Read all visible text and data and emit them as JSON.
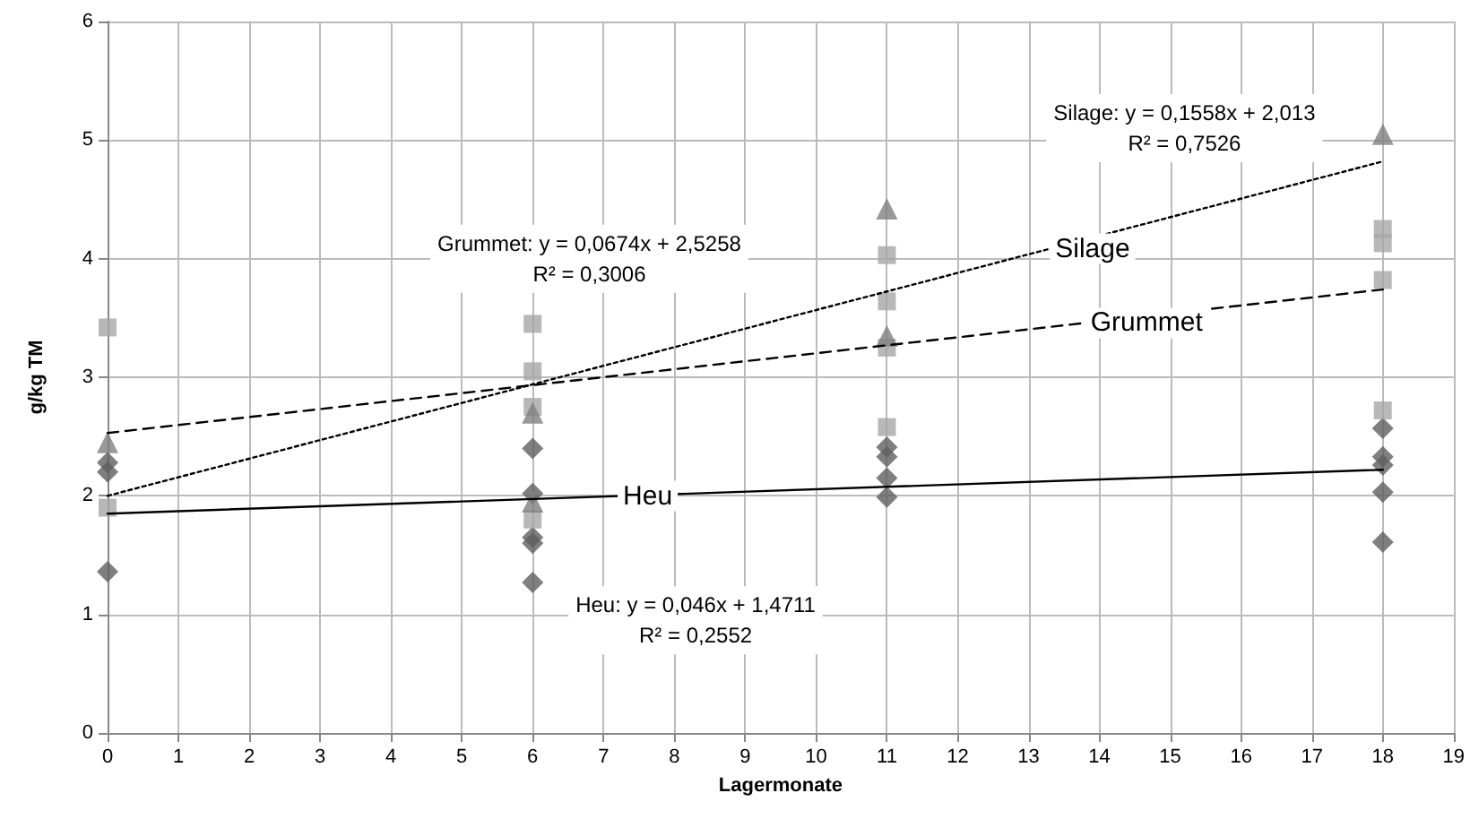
{
  "chart_data": {
    "type": "scatter",
    "xlabel": "Lagermonate",
    "ylabel": "g/kg TM",
    "xlim": [
      0,
      19
    ],
    "xticks": [
      0,
      1,
      2,
      3,
      4,
      5,
      6,
      7,
      8,
      9,
      10,
      11,
      12,
      13,
      14,
      15,
      16,
      17,
      18,
      19
    ],
    "ylim": [
      0,
      6
    ],
    "yticks": [
      0,
      1,
      2,
      3,
      4,
      5,
      6
    ],
    "grid": true,
    "legend": false,
    "series": [
      {
        "marker": "diamond",
        "color": "#5f5f5f",
        "x": [
          0,
          0,
          0,
          6,
          6,
          6,
          6,
          6,
          11,
          11,
          11,
          11,
          18,
          18,
          18,
          18,
          18
        ],
        "values": [
          2.28,
          2.2,
          1.36,
          2.4,
          2.02,
          1.65,
          1.6,
          1.27,
          2.41,
          2.33,
          2.15,
          1.99,
          2.57,
          2.33,
          2.26,
          2.03,
          1.61
        ]
      },
      {
        "marker": "square",
        "color": "#a6a6a6",
        "x": [
          0,
          0,
          6,
          6,
          6,
          6,
          11,
          11,
          11,
          11,
          18,
          18,
          18,
          18
        ],
        "values": [
          3.42,
          1.9,
          3.45,
          3.05,
          2.75,
          1.8,
          4.03,
          3.64,
          3.25,
          2.58,
          4.25,
          4.13,
          3.82,
          2.72
        ]
      },
      {
        "marker": "triangle",
        "color": "#808080",
        "x": [
          0,
          6,
          6,
          11,
          11,
          18
        ],
        "values": [
          2.45,
          2.7,
          1.95,
          4.42,
          3.35,
          5.05
        ]
      },
      {
        "type": "line",
        "name": "Heu",
        "marker": "none",
        "line_style": "solid",
        "color": "#000000",
        "x": [
          0,
          18
        ],
        "values": [
          1.85,
          2.22
        ]
      },
      {
        "type": "line",
        "name": "Grummet",
        "marker": "none",
        "line_style": "dashed",
        "color": "#000000",
        "x": [
          0,
          18
        ],
        "values": [
          2.53,
          3.74
        ]
      },
      {
        "type": "line",
        "name": "Silage",
        "marker": "none",
        "line_style": "dotted",
        "color": "#000000",
        "x": [
          0,
          18
        ],
        "values": [
          2.0,
          4.82
        ]
      }
    ],
    "annotations": [
      "Silage: y = 0,1558x + 2,013\nR² = 0,7526",
      "Grummet: y = 0,0674x + 2,5258\nR² = 0,3006",
      "Heu: y = 0,046x + 1,4711\nR² = 0,2552"
    ]
  }
}
